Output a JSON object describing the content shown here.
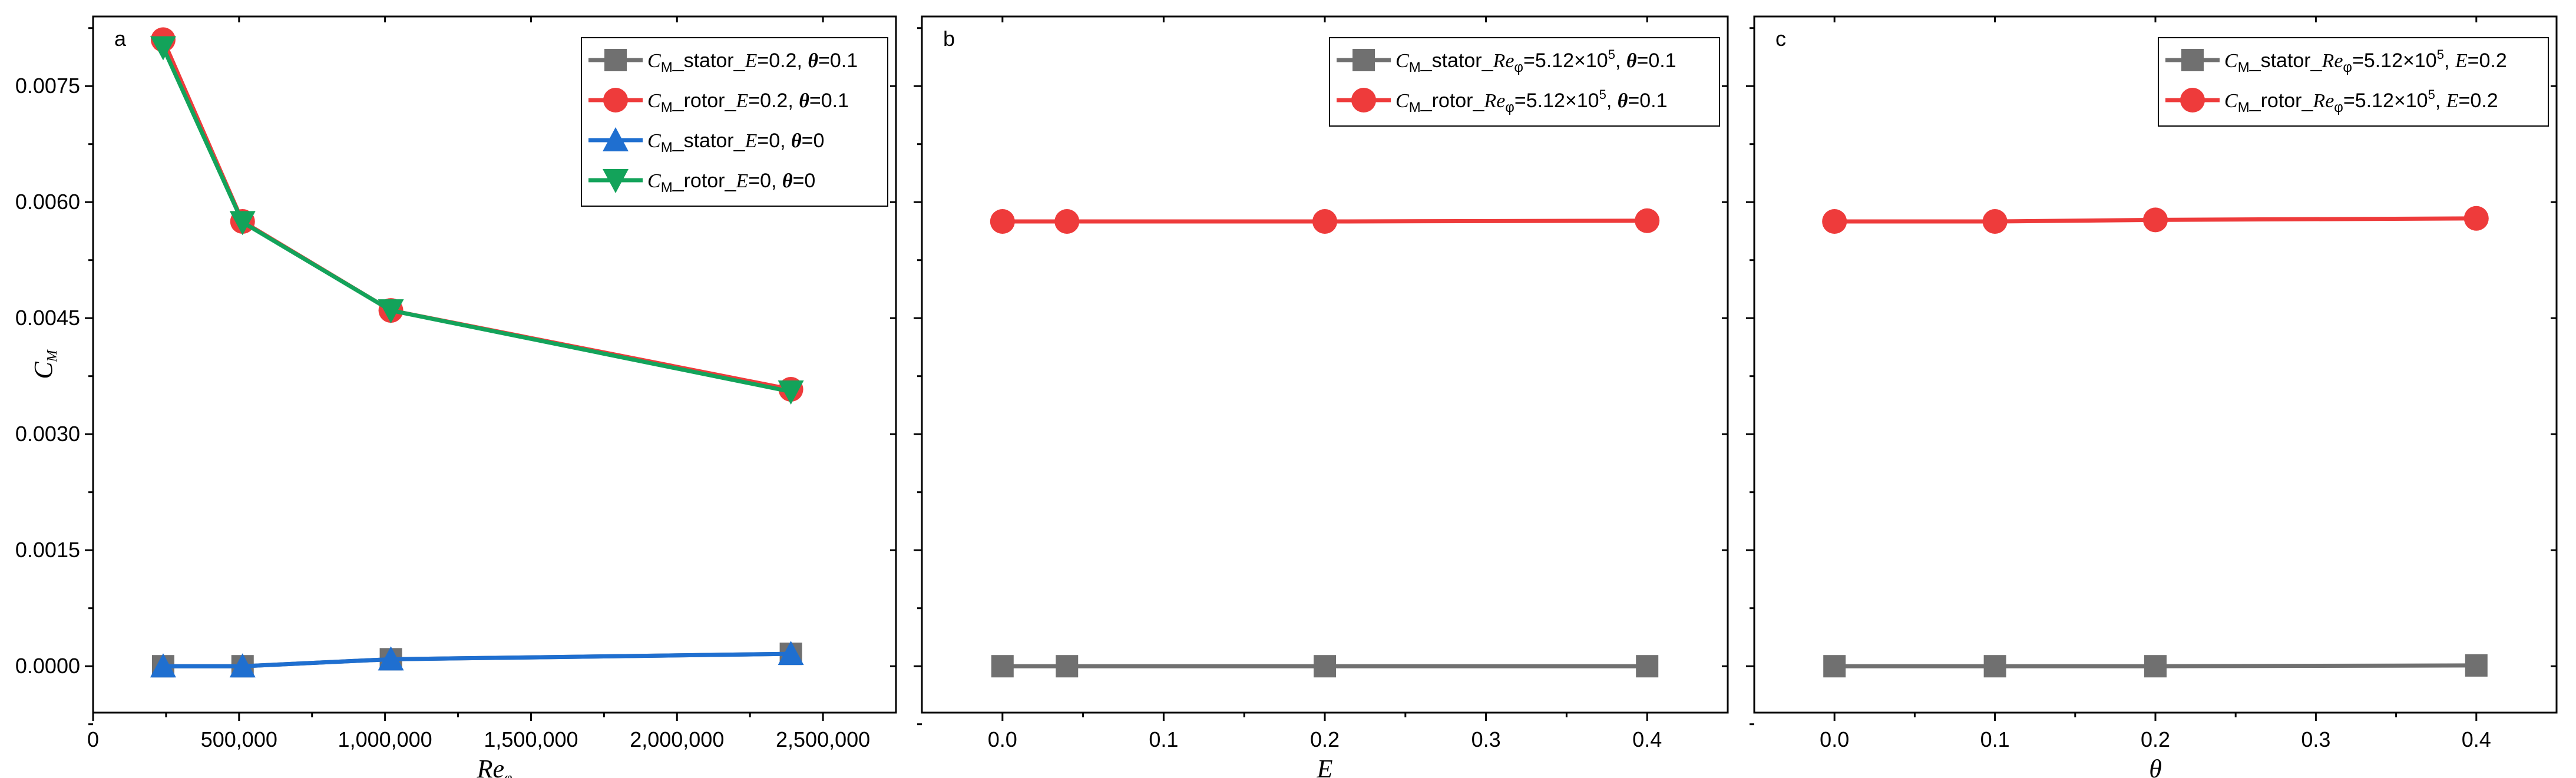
{
  "chart_data": [
    {
      "type": "line",
      "panel_label": "a",
      "xlabel": "Reφ",
      "ylabel": "CM",
      "xlim": [
        0,
        2750000
      ],
      "ylim": [
        -0.0006,
        0.0084
      ],
      "xticks": [
        0,
        500000,
        1000000,
        1500000,
        2000000,
        2500000
      ],
      "xtick_labels": [
        "0",
        "500,000",
        "1,000,000",
        "1,500,000",
        "2,000,000",
        "2,500,000"
      ],
      "yticks": [
        0.0,
        0.0015,
        0.003,
        0.0045,
        0.006,
        0.0075
      ],
      "ytick_labels": [
        "0.0000",
        "0.0015",
        "0.0030",
        "0.0045",
        "0.0060",
        "0.0075"
      ],
      "legend_position": "top-right",
      "series": [
        {
          "name": "CM_stator_E=0.2, θ=0.1",
          "marker": "square",
          "color": "#707070",
          "x": [
            240000,
            512000,
            1020000,
            2390000
          ],
          "y": [
            0.0,
            0.0,
            9e-05,
            0.00016
          ]
        },
        {
          "name": "CM_rotor_E=0.2, θ=0.1",
          "marker": "circle",
          "color": "#ee3b3b",
          "x": [
            240000,
            512000,
            1020000,
            2390000
          ],
          "y": [
            0.0081,
            0.00575,
            0.0046,
            0.00358
          ]
        },
        {
          "name": "CM_stator_E=0, θ=0",
          "marker": "triangle-up",
          "color": "#1f6fd0",
          "x": [
            240000,
            512000,
            1020000,
            2390000
          ],
          "y": [
            0.0,
            0.0,
            9e-05,
            0.00016
          ]
        },
        {
          "name": "CM_rotor_E=0, θ=0",
          "marker": "triangle-down",
          "color": "#13a35a",
          "x": [
            240000,
            512000,
            1020000,
            2390000
          ],
          "y": [
            0.008,
            0.00574,
            0.0046,
            0.00355
          ]
        }
      ]
    },
    {
      "type": "line",
      "panel_label": "b",
      "xlabel": "E",
      "ylabel": "",
      "xlim": [
        -0.05,
        0.45
      ],
      "ylim": [
        -0.0006,
        0.0084
      ],
      "xticks": [
        0.0,
        0.1,
        0.2,
        0.3,
        0.4
      ],
      "xtick_labels": [
        "0.0",
        "0.1",
        "0.2",
        "0.3",
        "0.4"
      ],
      "yticks": [
        0.0,
        0.0015,
        0.003,
        0.0045,
        0.006,
        0.0075
      ],
      "ytick_labels": [],
      "legend_position": "top-right",
      "series": [
        {
          "name": "CM_stator_Reφ=5.12×105, θ=0.1",
          "marker": "square",
          "color": "#707070",
          "x": [
            0.0,
            0.04,
            0.2,
            0.4
          ],
          "y": [
            0.0,
            0.0,
            0.0,
            0.0
          ]
        },
        {
          "name": "CM_rotor_Reφ=5.12×105, θ=0.1",
          "marker": "circle",
          "color": "#ee3b3b",
          "x": [
            0.0,
            0.04,
            0.2,
            0.4
          ],
          "y": [
            0.00575,
            0.00575,
            0.00575,
            0.00576
          ]
        }
      ]
    },
    {
      "type": "line",
      "panel_label": "c",
      "xlabel": "θ",
      "ylabel": "",
      "xlim": [
        -0.05,
        0.45
      ],
      "ylim": [
        -0.0006,
        0.0084
      ],
      "xticks": [
        0.0,
        0.1,
        0.2,
        0.3,
        0.4
      ],
      "xtick_labels": [
        "0.0",
        "0.1",
        "0.2",
        "0.3",
        "0.4"
      ],
      "yticks": [
        0.0,
        0.0015,
        0.003,
        0.0045,
        0.006,
        0.0075
      ],
      "ytick_labels": [],
      "legend_position": "top-right",
      "series": [
        {
          "name": "CM_stator_Reφ=5.12×105, E=0.2",
          "marker": "square",
          "color": "#707070",
          "x": [
            0.0,
            0.1,
            0.2,
            0.4
          ],
          "y": [
            0.0,
            0.0,
            0.0,
            1e-05
          ]
        },
        {
          "name": "CM_rotor_Reφ=5.12×105, E=0.2",
          "marker": "circle",
          "color": "#ee3b3b",
          "x": [
            0.0,
            0.1,
            0.2,
            0.4
          ],
          "y": [
            0.00575,
            0.00575,
            0.00577,
            0.00579
          ]
        }
      ]
    }
  ]
}
